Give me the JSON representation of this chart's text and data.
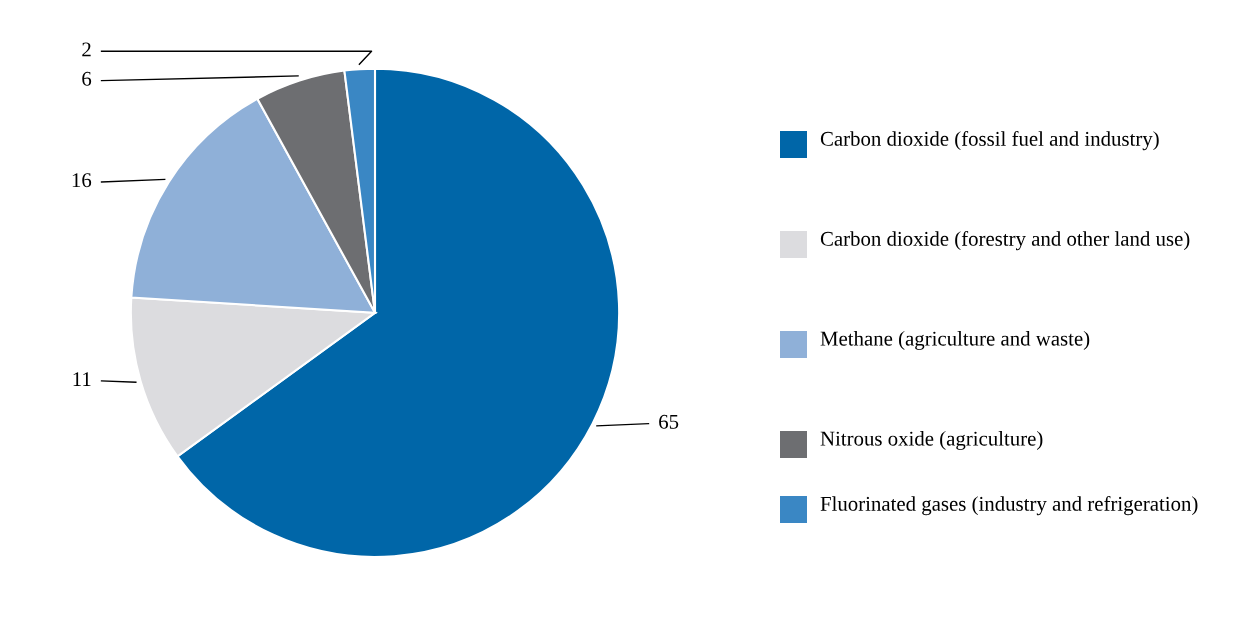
{
  "chart_data": {
    "type": "pie",
    "categories": [
      "Carbon dioxide (fossil fuel and industry)",
      "Carbon dioxide (forestry and other land use)",
      "Methane (agriculture and waste)",
      "Nitrous oxide (agriculture)",
      "Fluorinated gases (industry and refrigeration)"
    ],
    "values": [
      65,
      11,
      16,
      6,
      2
    ],
    "colors": [
      "#0066a8",
      "#dcdcdf",
      "#8fb0d8",
      "#6d6e71",
      "#3a87c4"
    ],
    "data_labels": true,
    "legend": "right"
  }
}
